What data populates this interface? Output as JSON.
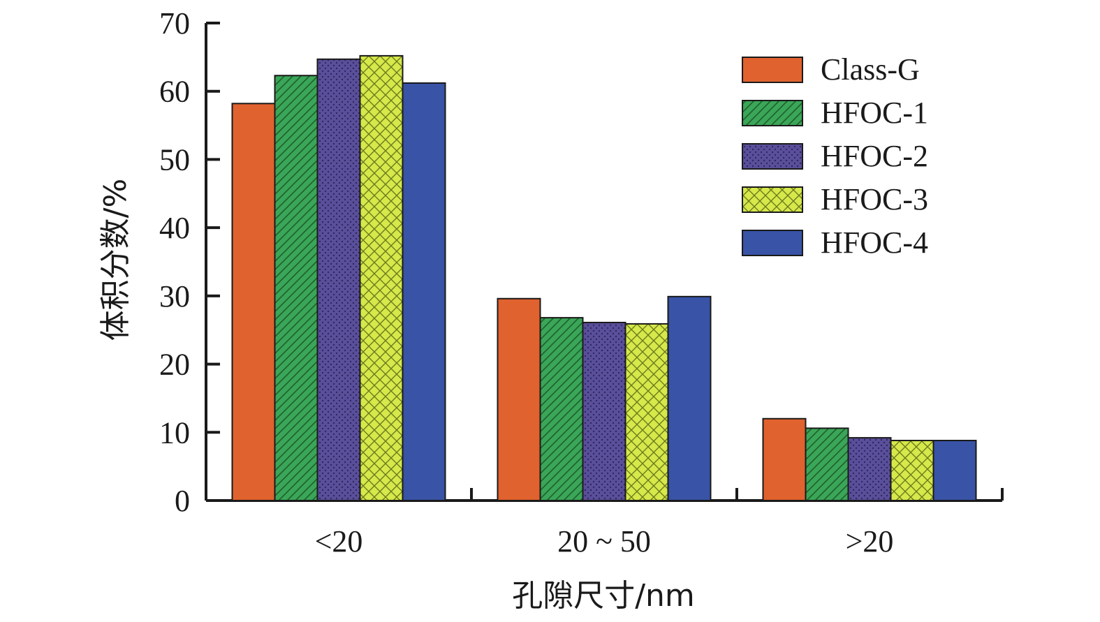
{
  "chart_data": {
    "type": "bar",
    "title": "",
    "xlabel": "孔隙尺寸/nm",
    "ylabel": "体积分数/%",
    "ylim": [
      0,
      70
    ],
    "yticks": [
      "0",
      "10",
      "20",
      "30",
      "40",
      "50",
      "60",
      "70"
    ],
    "categories": [
      "<20",
      "20 ~ 50",
      ">20"
    ],
    "legend": {
      "position": "top-right"
    },
    "grid": false,
    "series": [
      {
        "name": "Class-G",
        "values": [
          58.2,
          29.6,
          12.0
        ],
        "color": "#e0622e",
        "pattern": "solid"
      },
      {
        "name": "HFOC-1",
        "values": [
          62.3,
          26.8,
          10.6
        ],
        "color": "#3aa657",
        "pattern": "diagonal"
      },
      {
        "name": "HFOC-2",
        "values": [
          64.7,
          26.1,
          9.2
        ],
        "color": "#5a4f9a",
        "pattern": "dots"
      },
      {
        "name": "HFOC-3",
        "values": [
          65.2,
          25.9,
          8.8
        ],
        "color": "#d6e84a",
        "pattern": "crosshatch"
      },
      {
        "name": "HFOC-4",
        "values": [
          61.2,
          29.9,
          8.8
        ],
        "color": "#3953a6",
        "pattern": "solid"
      }
    ]
  }
}
